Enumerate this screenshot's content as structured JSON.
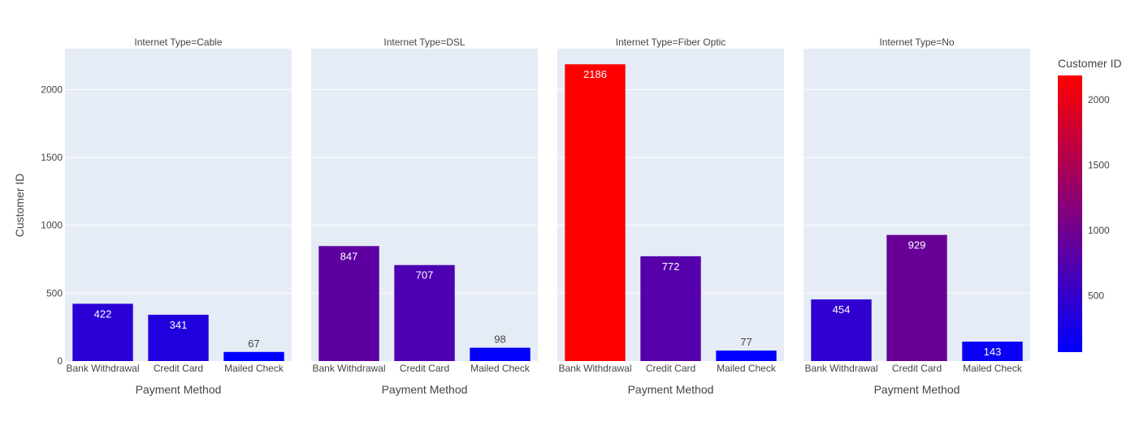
{
  "chart_data": {
    "type": "bar",
    "layout": "faceted",
    "facet_label_prefix": "Internet Type=",
    "facets": [
      {
        "title": "Internet Type=Cable",
        "values": [
          422,
          341,
          67
        ]
      },
      {
        "title": "Internet Type=DSL",
        "values": [
          847,
          707,
          98
        ]
      },
      {
        "title": "Internet Type=Fiber Optic",
        "values": [
          2186,
          772,
          77
        ]
      },
      {
        "title": "Internet Type=No",
        "values": [
          454,
          929,
          143
        ]
      }
    ],
    "categories": [
      "Bank Withdrawal",
      "Credit Card",
      "Mailed Check"
    ],
    "xlabel": "Payment Method",
    "ylabel": "Customer ID",
    "ylim": [
      0,
      2301
    ],
    "yticks": [
      0,
      500,
      1000,
      1500,
      2000
    ],
    "grid": true,
    "colorbar": {
      "title": "Customer ID",
      "min": 67,
      "max": 2186,
      "ticks": [
        500,
        1000,
        1500,
        2000
      ],
      "color_low": "#0000ff",
      "color_high": "#ff0000"
    }
  },
  "colors": {
    "plot_bg": "#e5ecf6",
    "grid": "#ffffff",
    "text": "#444444",
    "label_light": "#ffffff"
  }
}
